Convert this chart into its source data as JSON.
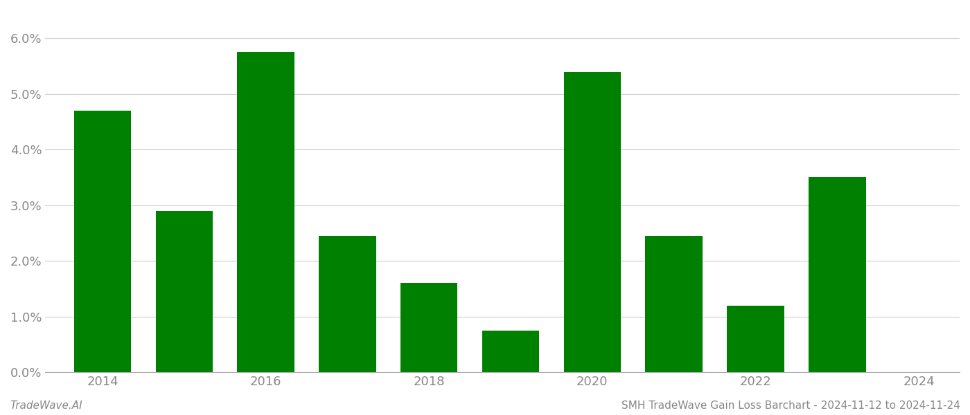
{
  "years": [
    2014,
    2015,
    2016,
    2017,
    2018,
    2019,
    2020,
    2021,
    2022,
    2023
  ],
  "values": [
    0.047,
    0.029,
    0.0575,
    0.0245,
    0.016,
    0.0075,
    0.054,
    0.0245,
    0.012,
    0.035
  ],
  "bar_color": "#008000",
  "ylim": [
    0,
    0.065
  ],
  "yticks": [
    0.0,
    0.01,
    0.02,
    0.03,
    0.04,
    0.05,
    0.06
  ],
  "xticks": [
    2014,
    2016,
    2018,
    2020,
    2022,
    2024
  ],
  "xlim": [
    2013.3,
    2024.5
  ],
  "background_color": "#ffffff",
  "grid_color": "#cccccc",
  "footer_left": "TradeWave.AI",
  "footer_right": "SMH TradeWave Gain Loss Barchart - 2024-11-12 to 2024-11-24",
  "bar_width": 0.7,
  "tick_fontsize": 13,
  "footer_fontsize": 11
}
